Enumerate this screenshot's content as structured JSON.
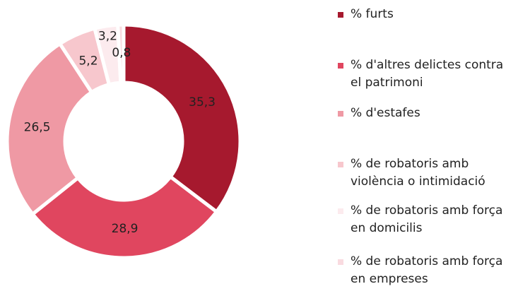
{
  "chart_data": {
    "type": "donut",
    "categories": [
      "% furts",
      "% d'altres delictes contra el patrimoni",
      "% d'estafes",
      "% de robatoris amb violència o intimidació",
      "% de robatoris amb força en domicilis",
      "% de robatoris amb força en empreses"
    ],
    "values": [
      35.3,
      28.9,
      26.5,
      5.2,
      3.2,
      0.8
    ],
    "value_labels": [
      "35,3",
      "28,9",
      "26,5",
      "5,2",
      "3,2",
      "0,8"
    ],
    "colors": [
      "#a6192e",
      "#e0465f",
      "#ef99a4",
      "#f7c7cd",
      "#fcebee",
      "#f9dbe0"
    ],
    "legend": "right"
  }
}
